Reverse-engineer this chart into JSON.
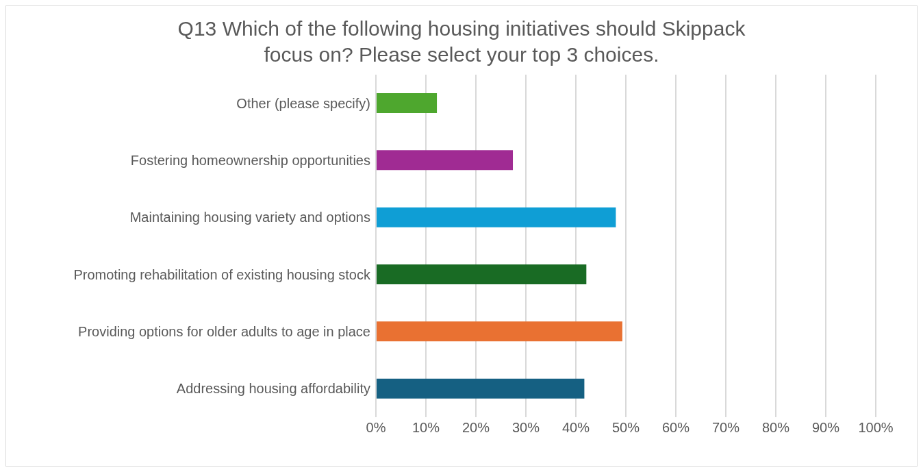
{
  "chart_data": {
    "type": "bar",
    "orientation": "horizontal",
    "title": "Q13 Which of the following housing initiatives should Skippack focus on? Please select your top 3 choices.",
    "categories": [
      "Other (please specify)",
      "Fostering homeownership opportunities",
      "Maintaining housing variety and options",
      "Promoting rehabilitation of existing housing stock",
      "Providing options for older adults to age in place",
      "Addressing housing affordability"
    ],
    "values": [
      12.2,
      27.4,
      48.0,
      42.1,
      49.3,
      41.7
    ],
    "colors": [
      "#4ea72e",
      "#a02b93",
      "#0f9ed5",
      "#196b24",
      "#e97132",
      "#156082"
    ],
    "xlim": [
      0,
      100
    ],
    "xticks": [
      {
        "value": 0,
        "label": "0%"
      },
      {
        "value": 10,
        "label": "10%"
      },
      {
        "value": 20,
        "label": "20%"
      },
      {
        "value": 30,
        "label": "30%"
      },
      {
        "value": 40,
        "label": "40%"
      },
      {
        "value": 50,
        "label": "50%"
      },
      {
        "value": 60,
        "label": "60%"
      },
      {
        "value": 70,
        "label": "70%"
      },
      {
        "value": 80,
        "label": "80%"
      },
      {
        "value": 90,
        "label": "90%"
      },
      {
        "value": 100,
        "label": "100%"
      }
    ],
    "grid": "x"
  }
}
